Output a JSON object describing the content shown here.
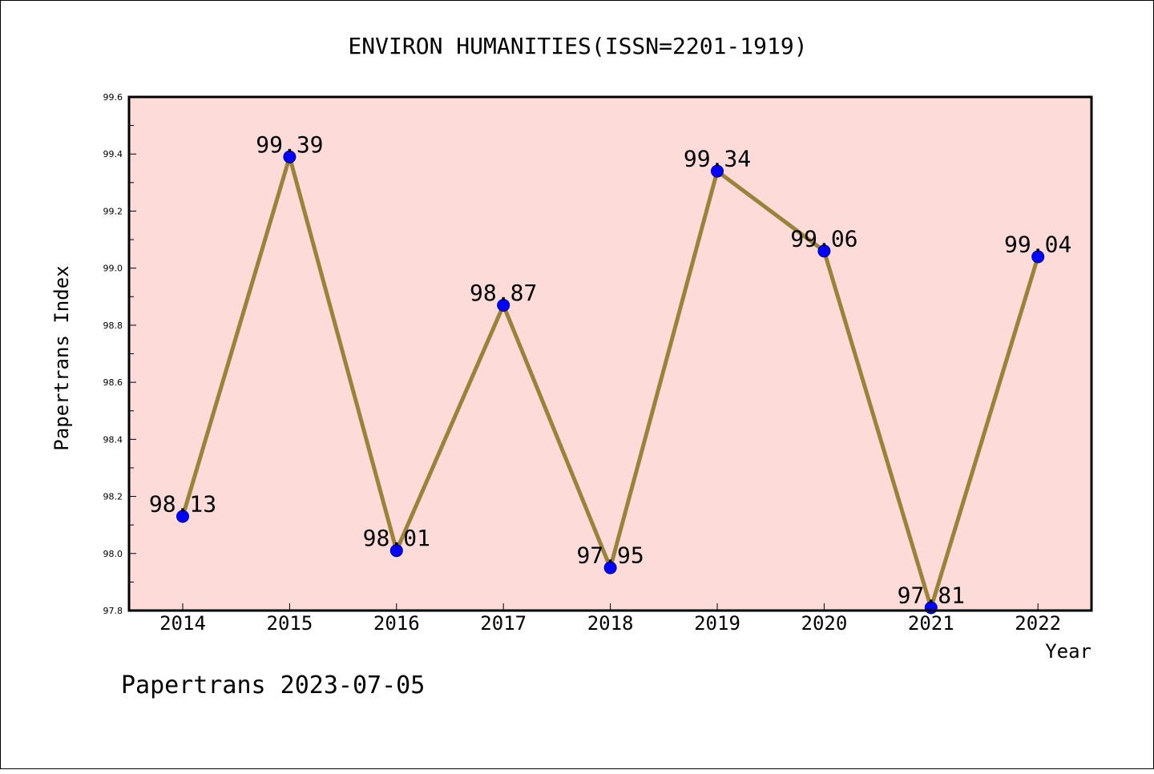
{
  "chart_data": {
    "type": "line",
    "title": "ENVIRON HUMANITIES(ISSN=2201-1919)",
    "xlabel": "Year",
    "ylabel": "Papertrans Index",
    "categories": [
      "2014",
      "2015",
      "2016",
      "2017",
      "2018",
      "2019",
      "2020",
      "2021",
      "2022"
    ],
    "values": [
      98.13,
      99.39,
      98.01,
      98.87,
      97.95,
      99.34,
      99.06,
      97.81,
      99.04
    ],
    "data_labels": [
      "98.13",
      "99.39",
      "98.01",
      "98.87",
      "97.95",
      "99.34",
      "99.06",
      "97.81",
      "99.04"
    ],
    "ylim": [
      97.8,
      99.6
    ],
    "yticks": [
      "97.8",
      "98.0",
      "98.2",
      "98.4",
      "98.6",
      "98.8",
      "99.0",
      "99.2",
      "99.4",
      "99.6"
    ],
    "grid": false,
    "colors": {
      "plot_background": "#fddbd9",
      "line": "#9a8239",
      "marker": "#0000ff"
    }
  },
  "footer": "Papertrans 2023-07-05"
}
